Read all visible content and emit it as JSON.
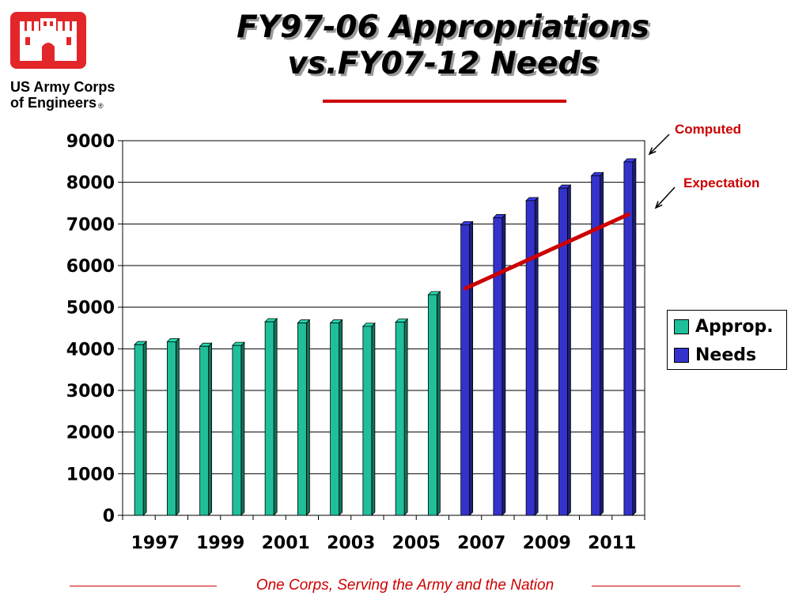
{
  "logo": {
    "line1": "US Army Corps",
    "line2": "of Engineers",
    "reg": "®",
    "color": "#e3262a",
    "icon": "castle-icon"
  },
  "footer": {
    "text": "One Corps, Serving the Army and the Nation"
  },
  "callouts": {
    "computed": "Computed",
    "expectation": "Expectation"
  },
  "chart_data": {
    "type": "bar",
    "title_line1": "FY97-06 Appropriations",
    "title_line2": "vs.FY07-12 Needs",
    "x": [
      1997,
      1998,
      1999,
      2000,
      2001,
      2002,
      2003,
      2004,
      2005,
      2006,
      2007,
      2008,
      2009,
      2010,
      2011,
      2012
    ],
    "x_tick_labels": [
      "1997",
      "1999",
      "2001",
      "2003",
      "2005",
      "2007",
      "2009",
      "2011"
    ],
    "y_tick_labels": [
      "0",
      "1000",
      "2000",
      "3000",
      "4000",
      "5000",
      "6000",
      "7000",
      "8000",
      "9000"
    ],
    "ylim": [
      0,
      9000
    ],
    "grid": true,
    "legend_position": "right",
    "series": [
      {
        "name": "Approp.",
        "color": "#1fbf9a",
        "values": [
          4100,
          4170,
          4060,
          4080,
          4650,
          4620,
          4620,
          4540,
          4640,
          5300,
          null,
          null,
          null,
          null,
          null,
          null
        ]
      },
      {
        "name": "Needs",
        "color": "#3333cc",
        "values": [
          null,
          null,
          null,
          null,
          null,
          null,
          null,
          null,
          null,
          null,
          6980,
          7150,
          7560,
          7860,
          8160,
          8490
        ]
      }
    ],
    "expectation_line": {
      "color": "#cc0000",
      "x": [
        2007,
        2012
      ],
      "y": [
        5450,
        7230
      ]
    }
  }
}
